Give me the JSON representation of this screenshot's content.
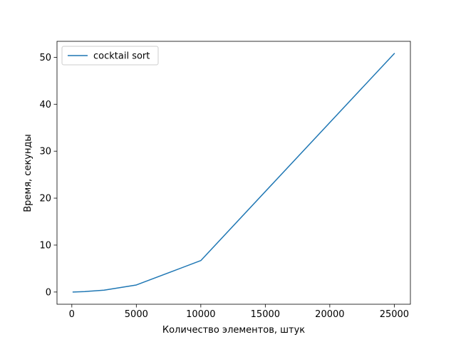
{
  "chart_data": {
    "type": "line",
    "xlabel": "Количество элементов, штук",
    "ylabel": "Время, секунды",
    "xlim": [
      -1150,
      26250
    ],
    "ylim": [
      -2.6,
      53.4
    ],
    "xticks": [
      {
        "value": 0,
        "label": "0"
      },
      {
        "value": 5000,
        "label": "5000"
      },
      {
        "value": 10000,
        "label": "10000"
      },
      {
        "value": 15000,
        "label": "15000"
      },
      {
        "value": 20000,
        "label": "20000"
      },
      {
        "value": 25000,
        "label": "25000"
      }
    ],
    "yticks": [
      {
        "value": 0,
        "label": "0"
      },
      {
        "value": 10,
        "label": "10"
      },
      {
        "value": 20,
        "label": "20"
      },
      {
        "value": 30,
        "label": "30"
      },
      {
        "value": 40,
        "label": "40"
      },
      {
        "value": 50,
        "label": "50"
      }
    ],
    "grid": false,
    "legend_position": "upper-left",
    "series": [
      {
        "name": "cocktail sort",
        "color": "#1f77b4",
        "x": [
          100,
          1000,
          2500,
          5000,
          10000,
          25000
        ],
        "y": [
          0.0,
          0.1,
          0.4,
          1.5,
          6.7,
          50.8
        ]
      }
    ]
  }
}
